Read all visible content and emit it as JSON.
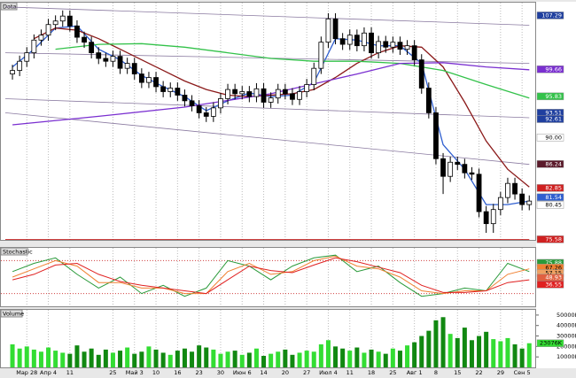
{
  "chart_data": [
    {
      "type": "candlestick",
      "title": "Data",
      "categories": [
        null,
        null,
        "Мар 28",
        null,
        null,
        "Апр 4",
        null,
        null,
        "11",
        null,
        null,
        null,
        null,
        null,
        "25",
        null,
        null,
        "Май 3",
        null,
        null,
        "10",
        null,
        null,
        "16",
        null,
        null,
        "23",
        null,
        null,
        "30",
        null,
        null,
        "Июн 6",
        null,
        null,
        "14",
        null,
        null,
        "20",
        null,
        null,
        "27",
        null,
        null,
        "Июл 4",
        null,
        null,
        "11",
        null,
        null,
        "18",
        null,
        null,
        "25",
        null,
        null,
        "Авг 1",
        null,
        null,
        "8",
        null,
        null,
        "15",
        null,
        null,
        "22",
        null,
        null,
        "29",
        null,
        null,
        "Сен 5",
        null
      ],
      "open": [
        99.0,
        99.5,
        100.8,
        102.0,
        103.8,
        104.5,
        106.0,
        106.5,
        107.2,
        105.8,
        104.2,
        103.5,
        102.0,
        101.2,
        100.8,
        101.5,
        99.8,
        100.5,
        99.0,
        97.8,
        98.5,
        97.2,
        96.5,
        97.0,
        96.0,
        95.2,
        94.5,
        93.5,
        93.0,
        94.2,
        95.5,
        96.8,
        96.2,
        96.5,
        95.8,
        96.9,
        95.0,
        95.6,
        96.8,
        96.2,
        95.4,
        96.5,
        97.5,
        99.8,
        103.5,
        106.8,
        104.0,
        103.2,
        104.5,
        103.0,
        104.8,
        102.0,
        103.6,
        102.8,
        103.5,
        102.5,
        103.0,
        101.0,
        97.0,
        93.5,
        87.0,
        84.5,
        86.5,
        86.2,
        85.0,
        84.8,
        79.5,
        77.8,
        79.8,
        81.5,
        83.5,
        82.0,
        80.5
      ],
      "high": [
        100.3,
        101.6,
        102.8,
        104.6,
        105.3,
        106.8,
        107.3,
        108.0,
        108.0,
        106.6,
        105.0,
        104.3,
        102.8,
        102.0,
        102.3,
        102.3,
        101.3,
        101.3,
        99.8,
        99.3,
        99.3,
        98.0,
        97.8,
        97.8,
        96.8,
        96.0,
        95.3,
        94.3,
        95.0,
        96.3,
        97.6,
        97.6,
        97.3,
        97.3,
        97.7,
        97.7,
        96.4,
        97.6,
        97.6,
        97.0,
        97.3,
        98.3,
        100.6,
        104.3,
        107.6,
        107.6,
        104.8,
        105.3,
        105.3,
        105.6,
        105.6,
        104.4,
        104.4,
        104.3,
        104.3,
        103.8,
        103.8,
        101.8,
        97.8,
        94.3,
        87.8,
        87.3,
        87.3,
        87.0,
        85.8,
        85.6,
        80.3,
        80.6,
        82.3,
        84.3,
        84.3,
        82.8,
        81.8
      ],
      "low": [
        98.2,
        98.7,
        100.0,
        101.2,
        103.0,
        103.7,
        105.2,
        105.7,
        105.0,
        103.4,
        102.7,
        101.2,
        100.4,
        100.0,
        100.0,
        99.0,
        99.0,
        98.2,
        97.0,
        97.0,
        96.4,
        95.7,
        95.7,
        95.2,
        94.4,
        93.7,
        92.7,
        92.2,
        92.2,
        93.4,
        94.7,
        95.4,
        95.4,
        95.0,
        95.0,
        94.2,
        94.2,
        94.8,
        95.4,
        94.6,
        94.6,
        95.7,
        96.7,
        99.0,
        102.7,
        103.2,
        102.4,
        102.4,
        102.2,
        102.2,
        101.2,
        101.2,
        102.0,
        102.0,
        101.7,
        101.7,
        100.2,
        96.2,
        92.7,
        86.2,
        82.0,
        83.7,
        85.4,
        84.2,
        84.0,
        78.7,
        76.5,
        76.5,
        79.0,
        80.7,
        81.2,
        79.7,
        79.7
      ],
      "close": [
        99.5,
        100.8,
        102.0,
        103.8,
        104.5,
        106.0,
        106.5,
        107.2,
        105.8,
        104.2,
        103.5,
        102.0,
        101.2,
        100.8,
        101.5,
        99.8,
        100.5,
        99.0,
        97.8,
        98.5,
        97.2,
        96.5,
        97.0,
        96.0,
        95.2,
        94.5,
        93.5,
        93.0,
        94.2,
        95.5,
        96.8,
        96.2,
        96.5,
        95.8,
        96.9,
        95.0,
        95.6,
        96.8,
        96.2,
        95.4,
        96.5,
        97.5,
        99.8,
        103.5,
        106.8,
        104.0,
        103.2,
        104.5,
        103.0,
        104.8,
        102.0,
        103.6,
        102.8,
        103.5,
        102.5,
        103.0,
        101.0,
        97.0,
        93.5,
        87.0,
        84.5,
        86.5,
        86.2,
        85.0,
        84.8,
        79.5,
        77.8,
        79.8,
        81.5,
        83.5,
        82.0,
        80.5,
        81.0
      ],
      "ylim": [
        75.5,
        109.1
      ],
      "overlays": [
        {
          "color": "#2f5fd0",
          "x": [
            0,
            3,
            6,
            9,
            12,
            15,
            18,
            21,
            24,
            27,
            30,
            33,
            36,
            39,
            42,
            45,
            48,
            51,
            54,
            57,
            60,
            63,
            66,
            69,
            72
          ],
          "values": [
            100.0,
            102.5,
            105.5,
            105.8,
            102.5,
            101.0,
            98.8,
            97.2,
            95.8,
            93.8,
            95.2,
            96.3,
            95.8,
            96.0,
            97.8,
            104.0,
            103.8,
            103.0,
            103.0,
            100.5,
            89.0,
            85.5,
            80.5,
            80.5,
            81.0
          ]
        },
        {
          "color": "#8b1a1a",
          "x": [
            3,
            6,
            9,
            12,
            15,
            18,
            21,
            24,
            27,
            30,
            33,
            36,
            39,
            42,
            45,
            48,
            51,
            54,
            57,
            60,
            63,
            66,
            69,
            72
          ],
          "values": [
            104.0,
            105.5,
            105.2,
            104.0,
            102.5,
            101.0,
            99.5,
            98.0,
            96.8,
            96.0,
            95.8,
            96.0,
            96.2,
            96.8,
            98.5,
            100.5,
            102.0,
            103.0,
            102.8,
            100.0,
            95.0,
            89.5,
            85.5,
            83.0
          ]
        },
        {
          "color": "#33c24a",
          "x": [
            6,
            12,
            18,
            24,
            30,
            36,
            42,
            48,
            54,
            60,
            66,
            72
          ],
          "values": [
            102.5,
            103.2,
            103.3,
            102.8,
            102.0,
            101.2,
            100.8,
            100.8,
            100.5,
            99.5,
            97.5,
            95.6
          ]
        },
        {
          "color": "#7a2fd0",
          "x": [
            0,
            12,
            24,
            36,
            48,
            54,
            60,
            66,
            72
          ],
          "values": [
            91.8,
            93.0,
            94.3,
            96.2,
            99.0,
            100.5,
            100.6,
            100.0,
            99.6
          ]
        }
      ],
      "trend_lines": [
        {
          "color": "#8a7aa0",
          "x": [
            -1,
            72
          ],
          "values": [
            108.5,
            105.9
          ]
        },
        {
          "color": "#8a7aa0",
          "x": [
            -1,
            72
          ],
          "values": [
            102.0,
            100.5
          ]
        },
        {
          "color": "#8a7aa0",
          "x": [
            -1,
            72
          ],
          "values": [
            95.5,
            92.8
          ]
        },
        {
          "color": "#8a7aa0",
          "x": [
            -1,
            72
          ],
          "values": [
            93.5,
            86.2
          ]
        },
        {
          "color": "#c00000",
          "x": [
            -1,
            72
          ],
          "values": [
            75.58,
            75.58
          ]
        }
      ],
      "markers": [
        {
          "value": 107.29,
          "color": "#1f3f9f"
        },
        {
          "value": 99.66,
          "color": "#7a2fd0"
        },
        {
          "value": 95.83,
          "color": "#33c24a"
        },
        {
          "value": 93.51,
          "color": "#1f3f9f"
        },
        {
          "value": 92.61,
          "color": "#1f3f9f"
        },
        {
          "value": 90,
          "label": "90.00",
          "color": "#ffffff"
        },
        {
          "value": 86.24,
          "color": "#5a1a2a"
        },
        {
          "value": 82.85,
          "color": "#d02020"
        },
        {
          "value": 81.54,
          "color": "#2f5fd0"
        },
        {
          "value": 80.45,
          "color": "#ffffff"
        },
        {
          "value": 75.58,
          "color": "#d02020"
        }
      ]
    },
    {
      "type": "stochastic",
      "title": "Stochastic",
      "ylim": [
        0,
        100
      ],
      "levels": [
        20,
        80
      ],
      "series": [
        {
          "color": "#2a9a3a",
          "x": [
            0,
            3,
            6,
            9,
            12,
            15,
            18,
            21,
            24,
            27,
            30,
            33,
            36,
            39,
            42,
            45,
            48,
            51,
            54,
            57,
            60,
            63,
            66,
            69,
            72
          ],
          "values": [
            60,
            75,
            85,
            55,
            30,
            50,
            20,
            35,
            15,
            30,
            80,
            70,
            45,
            70,
            85,
            90,
            60,
            70,
            40,
            15,
            20,
            30,
            25,
            75,
            60
          ]
        },
        {
          "color": "#f08030",
          "x": [
            0,
            3,
            6,
            9,
            12,
            15,
            18,
            21,
            24,
            27,
            30,
            33,
            36,
            39,
            42,
            45,
            48,
            51,
            54,
            57,
            60,
            63,
            66,
            69,
            72
          ],
          "values": [
            50,
            65,
            80,
            70,
            40,
            40,
            30,
            30,
            20,
            20,
            60,
            75,
            55,
            60,
            80,
            88,
            70,
            65,
            50,
            25,
            20,
            25,
            25,
            55,
            65
          ]
        },
        {
          "color": "#e02020",
          "x": [
            0,
            3,
            6,
            9,
            12,
            15,
            18,
            21,
            24,
            27,
            30,
            33,
            36,
            39,
            42,
            45,
            48,
            51,
            54,
            57,
            60,
            63,
            66,
            69,
            72
          ],
          "values": [
            45,
            55,
            72,
            75,
            55,
            42,
            35,
            30,
            25,
            20,
            45,
            70,
            62,
            58,
            72,
            85,
            78,
            68,
            58,
            35,
            22,
            22,
            25,
            40,
            45
          ]
        }
      ],
      "markers": [
        {
          "value": 75.88,
          "color": "#2a9a3a"
        },
        {
          "value": 67.26,
          "color": "#f08030"
        },
        {
          "value": 57.15,
          "color": "#f0a060"
        },
        {
          "value": 48.93,
          "color": "#e06040"
        },
        {
          "value": 36.55,
          "color": "#e02020"
        }
      ]
    },
    {
      "type": "volume",
      "title": "Volume",
      "values": [
        22000,
        18000,
        20000,
        17000,
        15000,
        19000,
        16000,
        14000,
        13000,
        21000,
        15000,
        18000,
        12000,
        17000,
        14000,
        16000,
        19000,
        13000,
        15000,
        20000,
        17000,
        14000,
        12000,
        16000,
        18000,
        15000,
        21000,
        19000,
        17000,
        13000,
        15000,
        16000,
        12000,
        14000,
        18000,
        11000,
        13000,
        15000,
        17000,
        12000,
        14000,
        16000,
        15000,
        22000,
        26000,
        20000,
        18000,
        16000,
        19000,
        14000,
        17000,
        15000,
        13000,
        18000,
        16000,
        21000,
        24000,
        30000,
        35000,
        45000,
        48000,
        32000,
        28000,
        38000,
        26000,
        30000,
        34000,
        27000,
        25000,
        28000,
        22000,
        18000,
        23076
      ],
      "up_color": "#33dd33",
      "down_color": "#118811",
      "ylim": [
        0,
        55000
      ],
      "yticks": [
        {
          "value": 10000,
          "label": "10000K"
        },
        {
          "value": 20000,
          "label": "20000K"
        },
        {
          "value": 30000,
          "label": "30000K"
        },
        {
          "value": 40000,
          "label": "40000K"
        },
        {
          "value": 50000,
          "label": "50000K"
        }
      ],
      "markers": [
        {
          "value": 23076,
          "label": "23076K",
          "color": "#33dd33"
        }
      ]
    }
  ]
}
